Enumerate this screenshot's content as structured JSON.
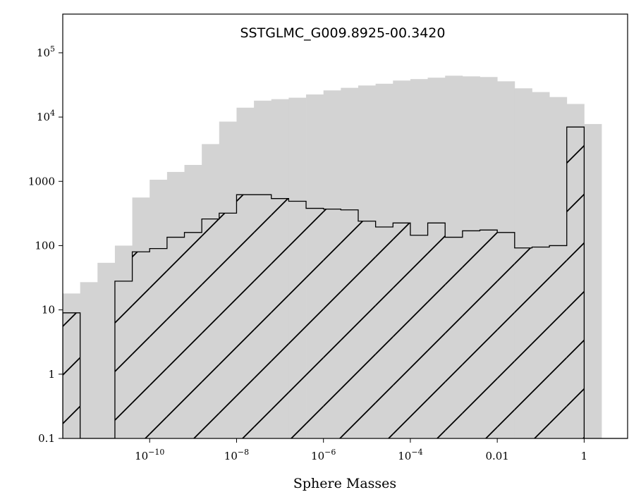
{
  "chart_data": {
    "type": "bar",
    "title": "SSTGLMC_G009.8925-00.3420",
    "xlabel": "Sphere Masses",
    "ylabel": "",
    "x_scale": "log",
    "y_scale": "log",
    "xlim": [
      1e-12,
      10
    ],
    "ylim": [
      0.1,
      400000
    ],
    "grid": false,
    "legend": "none",
    "x_ticks": [
      {
        "value": 1e-10,
        "base": "10",
        "exp": "−10",
        "label": ""
      },
      {
        "value": 1e-08,
        "base": "10",
        "exp": "−8",
        "label": ""
      },
      {
        "value": 1e-06,
        "base": "10",
        "exp": "−6",
        "label": ""
      },
      {
        "value": 0.0001,
        "base": "10",
        "exp": "−4",
        "label": ""
      },
      {
        "value": 0.01,
        "base": "",
        "exp": "",
        "label": "0.01"
      },
      {
        "value": 1,
        "base": "",
        "exp": "",
        "label": "1"
      }
    ],
    "y_ticks": [
      {
        "value": 0.1,
        "base": "",
        "exp": "",
        "label": "0.1"
      },
      {
        "value": 1,
        "base": "",
        "exp": "",
        "label": "1"
      },
      {
        "value": 10,
        "base": "",
        "exp": "",
        "label": "10"
      },
      {
        "value": 100,
        "base": "",
        "exp": "",
        "label": "100"
      },
      {
        "value": 1000,
        "base": "",
        "exp": "",
        "label": "1000"
      },
      {
        "value": 10000,
        "base": "10",
        "exp": "4",
        "label": ""
      },
      {
        "value": 100000,
        "base": "10",
        "exp": "5",
        "label": ""
      }
    ],
    "bin_edges_log10": [
      -12,
      -11.6,
      -11.2,
      -10.8,
      -10.4,
      -10,
      -9.6,
      -9.2,
      -8.8,
      -8.4,
      -8,
      -7.6,
      -7.2,
      -6.8,
      -6.4,
      -6,
      -5.6,
      -5.2,
      -4.8,
      -4.4,
      -4,
      -3.6,
      -3.2,
      -2.8,
      -2.4,
      -2,
      -1.6,
      -1.2,
      -0.8,
      -0.4,
      0,
      0.4,
      0.8,
      1
    ],
    "series": [
      {
        "style": "filled",
        "color": "#d3d3d3",
        "values": [
          18,
          27,
          54,
          100,
          560,
          1060,
          1400,
          1800,
          3800,
          8500,
          14000,
          18000,
          19000,
          20000,
          22500,
          26000,
          28500,
          31000,
          33000,
          37000,
          39000,
          41000,
          44000,
          43000,
          42000,
          36000,
          28000,
          24500,
          20500,
          16000,
          7800,
          0,
          0
        ]
      },
      {
        "style": "hatched-outline",
        "color": "#000000",
        "values": [
          9,
          0.1,
          0.1,
          28,
          80,
          90,
          135,
          160,
          260,
          320,
          620,
          620,
          540,
          490,
          380,
          370,
          360,
          240,
          195,
          225,
          145,
          225,
          135,
          170,
          175,
          160,
          92,
          95,
          100,
          7000,
          0,
          0,
          0
        ]
      }
    ]
  }
}
